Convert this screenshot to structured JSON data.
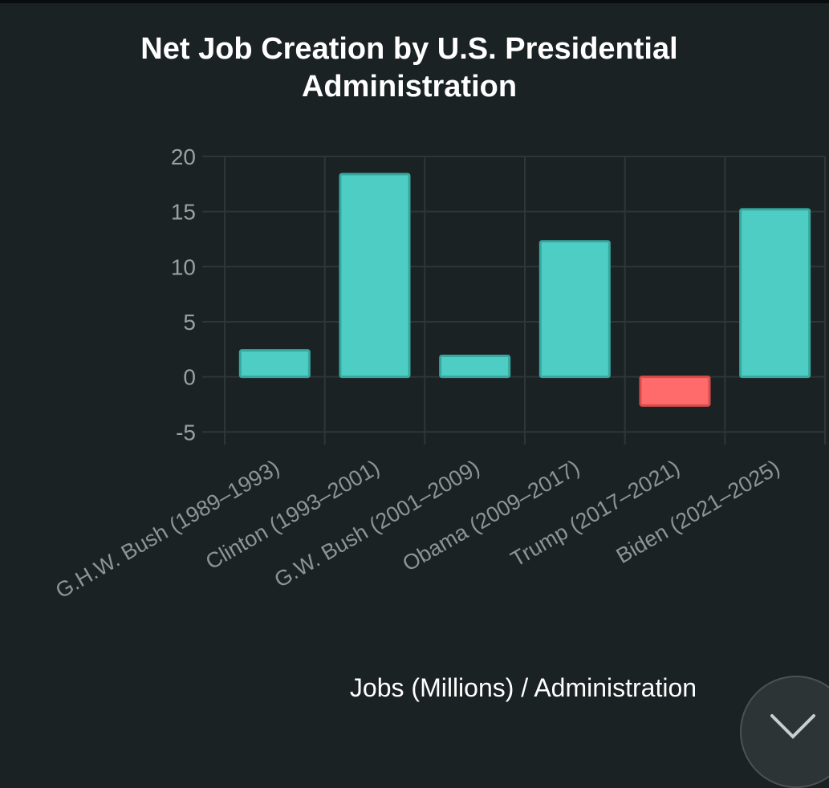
{
  "chart_data": {
    "type": "bar",
    "title": "Net Job Creation by U.S. Presidential Administration",
    "title_lines": [
      "Net Job Creation by U.S. Presidential",
      "Administration"
    ],
    "categories": [
      "G.H.W. Bush (1989–1993)",
      "Clinton (1993–2001)",
      "G.W. Bush (2001–2009)",
      "Obama (2009–2017)",
      "Trump (2017–2021)",
      "Biden (2021–2025)"
    ],
    "values": [
      2.4,
      18.4,
      1.9,
      12.3,
      -2.6,
      15.2
    ],
    "xlabel": "Jobs (Millions) / Administration",
    "ylabel": "",
    "ylim": [
      -6,
      20
    ],
    "yticks": [
      20,
      15,
      10,
      5,
      0,
      -5
    ],
    "grid": true,
    "colors": {
      "positive_fill": "#4ecdc4",
      "positive_stroke": "#36a89f",
      "negative_fill": "#ff6b6b",
      "negative_stroke": "#d94c4c",
      "grid": "#2e3638"
    }
  },
  "controls": {
    "close_icon": "close-icon"
  }
}
